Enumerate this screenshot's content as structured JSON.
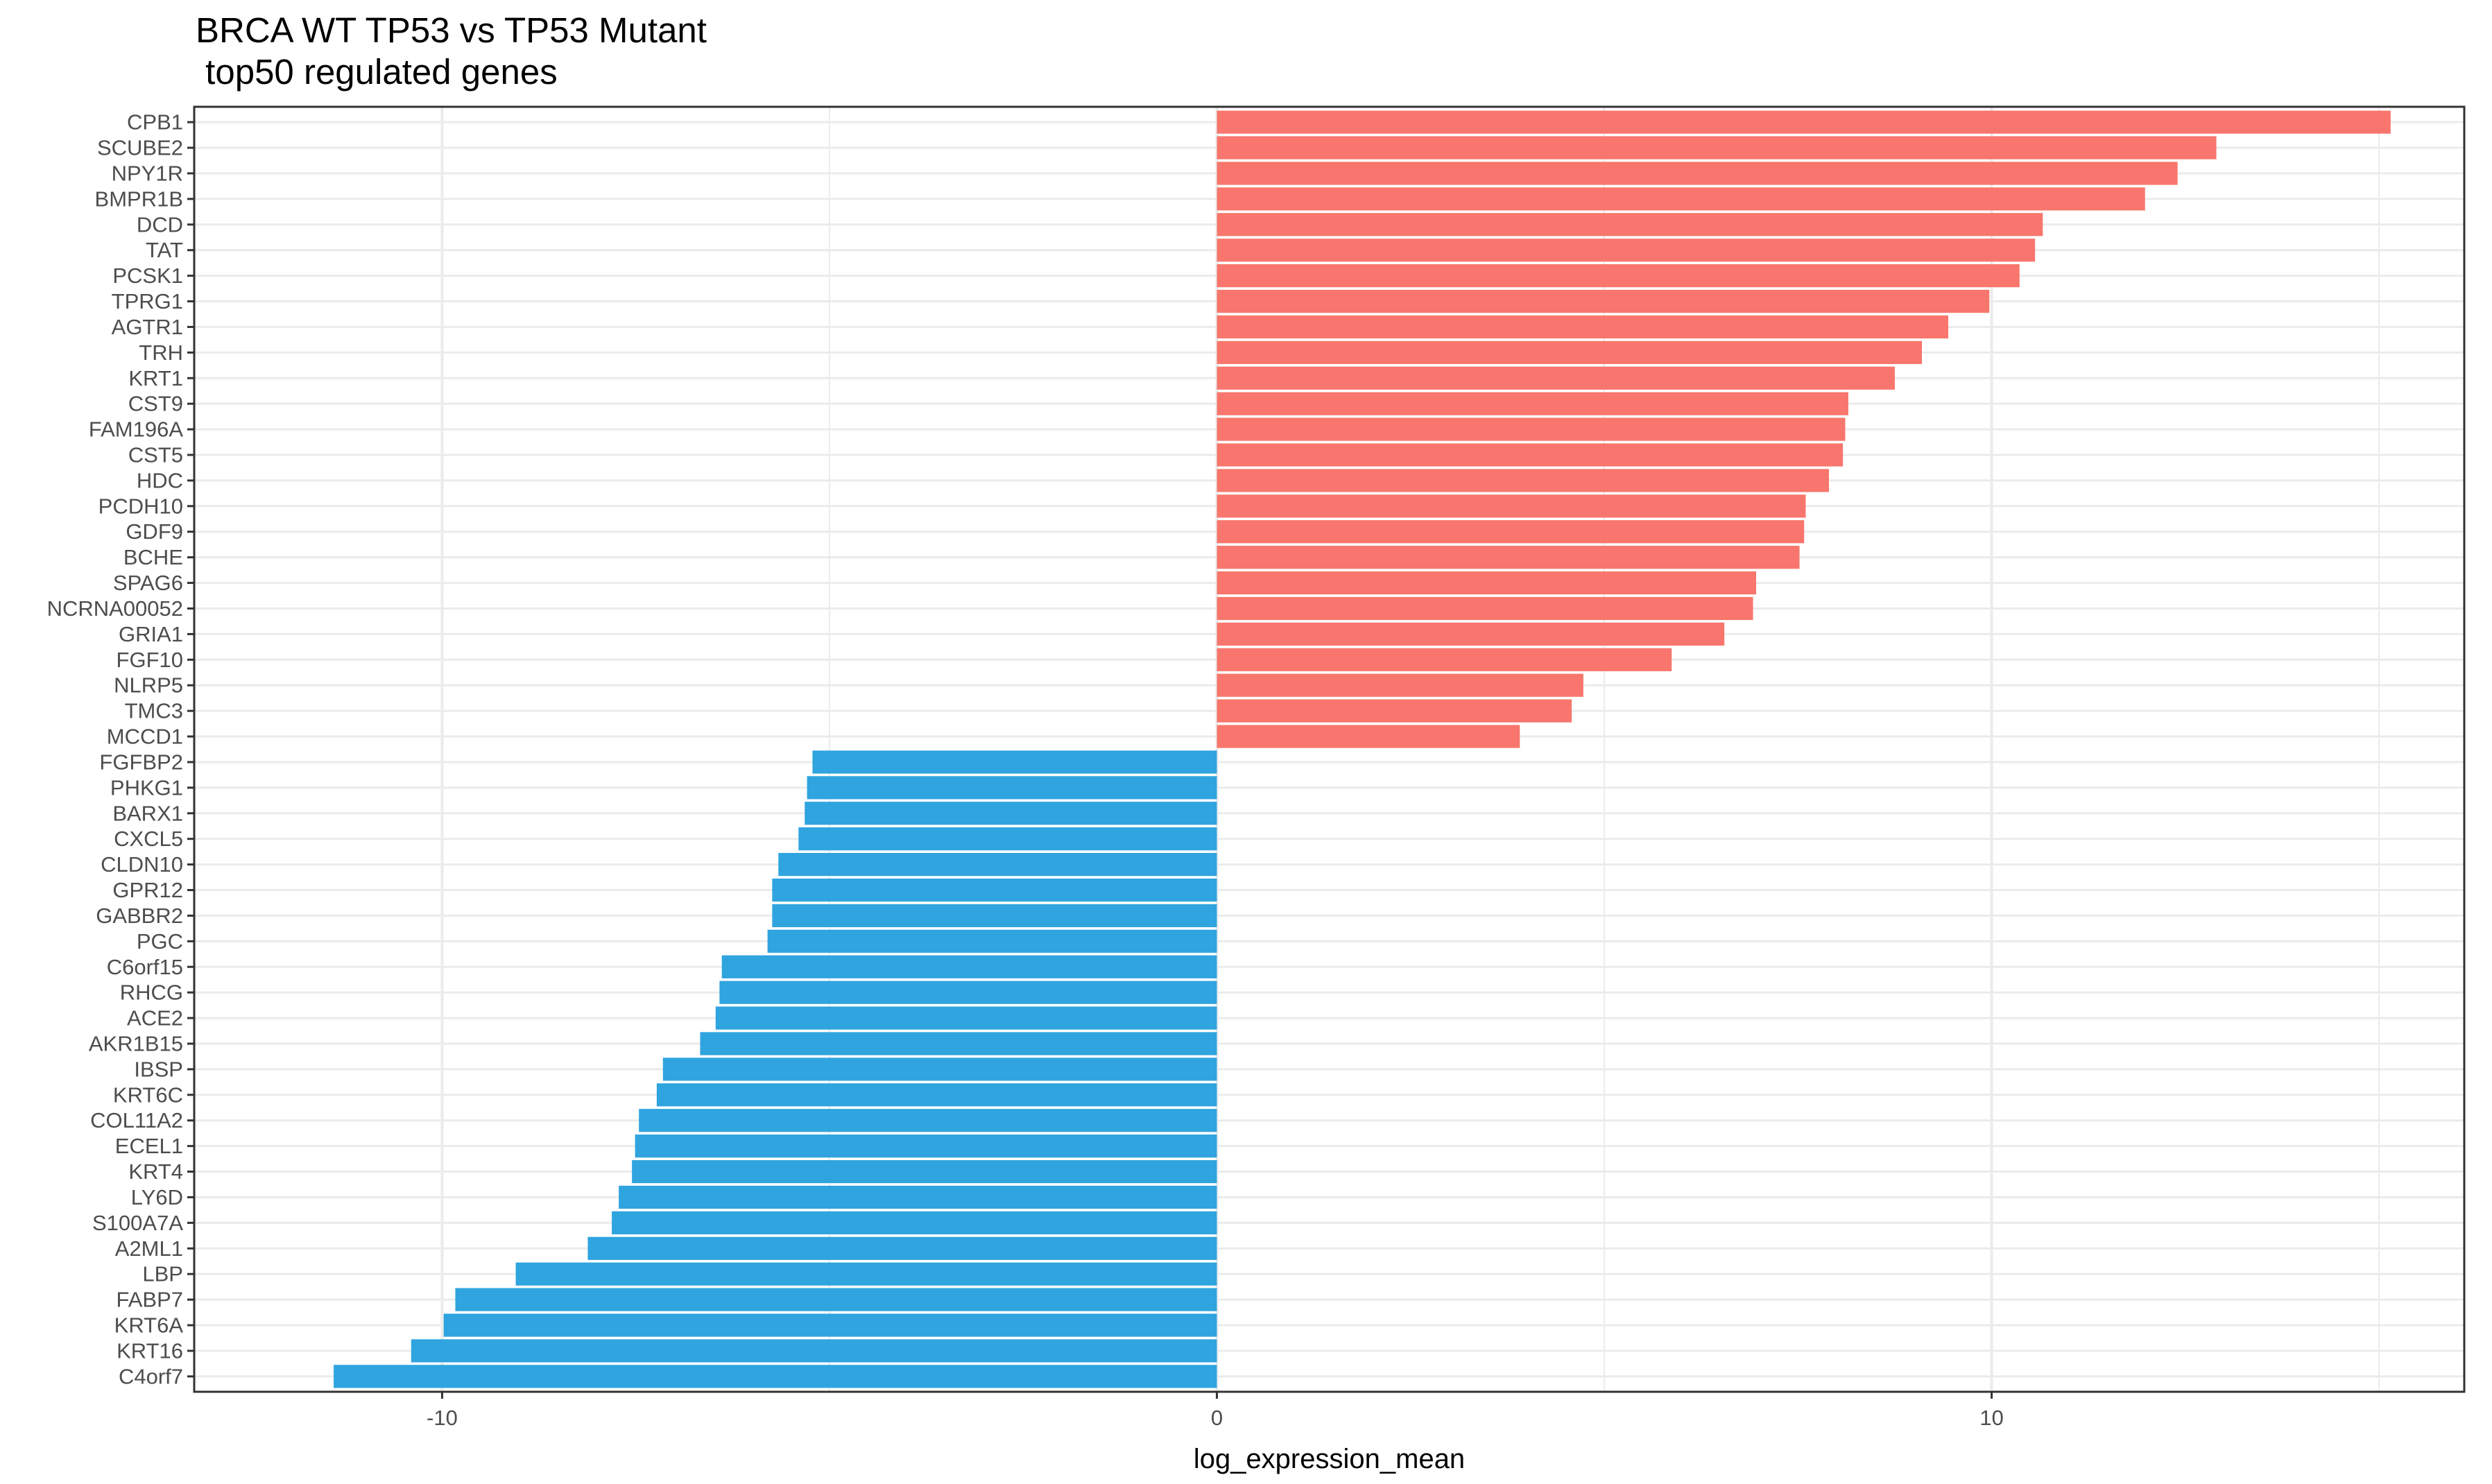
{
  "chart_data": {
    "type": "bar",
    "orientation": "horizontal",
    "title": [
      "BRCA WT TP53 vs TP53 Mutant",
      " top50 regulated genes"
    ],
    "xlabel": "log_expression_mean",
    "ylabel": "",
    "xlim": [
      -13.2,
      16.1
    ],
    "xticks": [
      -10,
      0,
      10
    ],
    "grid": true,
    "legend": "none",
    "colors": {
      "positive": "#F8766D",
      "negative": "#2FA4DF"
    },
    "categories": [
      "CPB1",
      "SCUBE2",
      "NPY1R",
      "BMPR1B",
      "DCD",
      "TAT",
      "PCSK1",
      "TPRG1",
      "AGTR1",
      "TRH",
      "KRT1",
      "CST9",
      "FAM196A",
      "CST5",
      "HDC",
      "PCDH10",
      "GDF9",
      "BCHE",
      "SPAG6",
      "NCRNA00052",
      "GRIA1",
      "FGF10",
      "NLRP5",
      "TMC3",
      "MCCD1",
      "FGFBP2",
      "PHKG1",
      "BARX1",
      "CXCL5",
      "CLDN10",
      "GPR12",
      "GABBR2",
      "PGC",
      "C6orf15",
      "RHCG",
      "ACE2",
      "AKR1B15",
      "IBSP",
      "KRT6C",
      "COL11A2",
      "ECEL1",
      "KRT4",
      "LY6D",
      "S100A7A",
      "A2ML1",
      "LBP",
      "FABP7",
      "KRT6A",
      "KRT16",
      "C4orf7"
    ],
    "values": [
      15.15,
      12.9,
      12.4,
      11.98,
      10.66,
      10.56,
      10.36,
      9.97,
      9.44,
      9.1,
      8.75,
      8.15,
      8.11,
      8.08,
      7.9,
      7.6,
      7.58,
      7.52,
      6.96,
      6.92,
      6.55,
      5.87,
      4.73,
      4.58,
      3.91,
      -5.22,
      -5.29,
      -5.32,
      -5.4,
      -5.66,
      -5.74,
      -5.74,
      -5.8,
      -6.39,
      -6.42,
      -6.47,
      -6.67,
      -7.15,
      -7.23,
      -7.46,
      -7.51,
      -7.55,
      -7.72,
      -7.81,
      -8.12,
      -9.05,
      -9.83,
      -9.98,
      -10.4,
      -11.4
    ]
  }
}
